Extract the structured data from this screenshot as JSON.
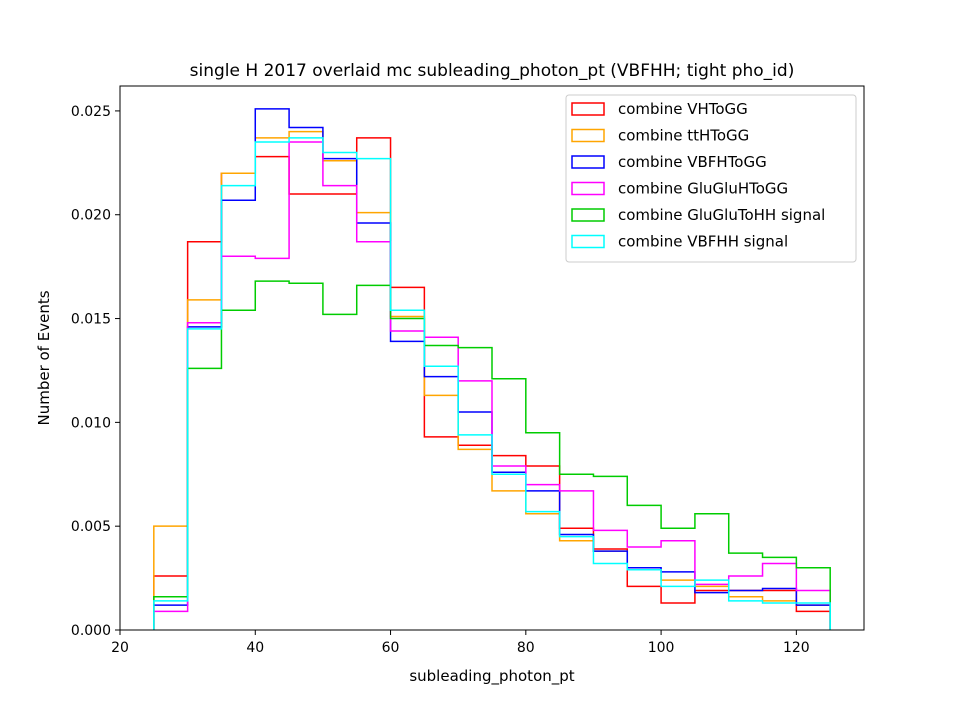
{
  "chart_data": {
    "type": "step-histogram",
    "title": "single H 2017 overlaid mc subleading_photon_pt (VBFHH; tight pho_id)",
    "xlabel": "subleading_photon_pt",
    "ylabel": "Number of Events",
    "xlim": [
      20,
      130
    ],
    "ylim": [
      0,
      0.0262
    ],
    "x_ticks": [
      20,
      40,
      60,
      80,
      100,
      120
    ],
    "y_ticks": [
      0.0,
      0.005,
      0.01,
      0.015,
      0.02,
      0.025
    ],
    "y_tick_labels": [
      "0.000",
      "0.005",
      "0.010",
      "0.015",
      "0.020",
      "0.025"
    ],
    "bin_edges": [
      25,
      30,
      35,
      40,
      45,
      50,
      55,
      60,
      65,
      70,
      75,
      80,
      85,
      90,
      95,
      100,
      105,
      110,
      115,
      120,
      125
    ],
    "legend_position": "top-right",
    "series": [
      {
        "name": "combine VHToGG",
        "color": "#ff0000",
        "values": [
          0.0026,
          0.0187,
          0.022,
          0.0228,
          0.021,
          0.021,
          0.0237,
          0.0165,
          0.0093,
          0.0089,
          0.0084,
          0.0079,
          0.0049,
          0.0039,
          0.0021,
          0.0013,
          0.0019,
          0.0019,
          0.0019,
          0.0009
        ]
      },
      {
        "name": "combine ttHToGG",
        "color": "#ffa500",
        "values": [
          0.005,
          0.0159,
          0.022,
          0.0237,
          0.024,
          0.0226,
          0.0201,
          0.0151,
          0.0113,
          0.0087,
          0.0067,
          0.0056,
          0.0043,
          0.0038,
          0.0029,
          0.0024,
          0.0021,
          0.0016,
          0.0014,
          0.0012
        ]
      },
      {
        "name": "combine VBFHToGG",
        "color": "#0000ff",
        "values": [
          0.0012,
          0.0146,
          0.0207,
          0.0251,
          0.0242,
          0.0227,
          0.0196,
          0.0139,
          0.0122,
          0.0105,
          0.0076,
          0.0067,
          0.0046,
          0.0038,
          0.003,
          0.0028,
          0.0018,
          0.0019,
          0.002,
          0.0012
        ]
      },
      {
        "name": "combine GluGluHToGG",
        "color": "#ff00ff",
        "values": [
          0.0009,
          0.0148,
          0.018,
          0.0179,
          0.0235,
          0.0214,
          0.0187,
          0.0144,
          0.0141,
          0.012,
          0.0079,
          0.007,
          0.0067,
          0.0048,
          0.004,
          0.0043,
          0.0022,
          0.0026,
          0.0032,
          0.0019
        ]
      },
      {
        "name": "combine GluGluToHH signal",
        "color": "#00cc00",
        "values": [
          0.0016,
          0.0126,
          0.0154,
          0.0168,
          0.0167,
          0.0152,
          0.0166,
          0.015,
          0.0137,
          0.0136,
          0.0121,
          0.0095,
          0.0075,
          0.0074,
          0.006,
          0.0049,
          0.0056,
          0.0037,
          0.0035,
          0.003
        ]
      },
      {
        "name": "combine VBFHH signal",
        "color": "#00ffff",
        "values": [
          0.0014,
          0.0145,
          0.0214,
          0.0235,
          0.0237,
          0.023,
          0.0227,
          0.0154,
          0.0127,
          0.0094,
          0.0075,
          0.0057,
          0.0045,
          0.0032,
          0.0029,
          0.0021,
          0.0024,
          0.0014,
          0.0013,
          0.0013
        ]
      }
    ]
  }
}
